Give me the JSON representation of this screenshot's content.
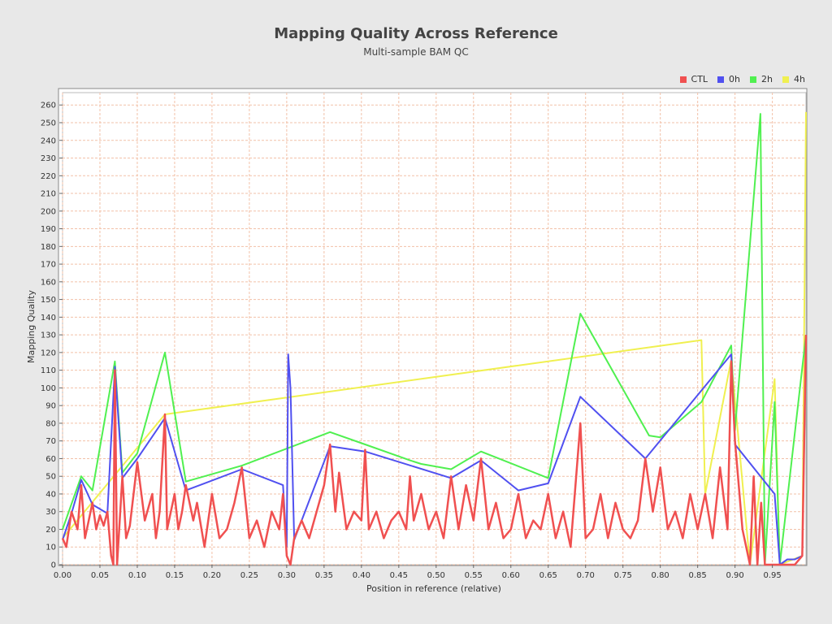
{
  "chart_data": {
    "type": "line",
    "title": "Mapping Quality Across Reference",
    "subtitle": "Multi-sample BAM QC",
    "xlabel": "Position in reference (relative)",
    "ylabel": "Mapping Quality",
    "xlim": [
      0,
      0.995
    ],
    "ylim": [
      0,
      267
    ],
    "x_ticks": [
      "0.00",
      "0.05",
      "0.10",
      "0.15",
      "0.20",
      "0.25",
      "0.30",
      "0.35",
      "0.40",
      "0.45",
      "0.50",
      "0.55",
      "0.60",
      "0.65",
      "0.70",
      "0.75",
      "0.80",
      "0.85",
      "0.90",
      "0.95"
    ],
    "y_ticks": [
      "0",
      "10",
      "20",
      "30",
      "40",
      "50",
      "60",
      "70",
      "80",
      "90",
      "100",
      "110",
      "120",
      "130",
      "140",
      "150",
      "160",
      "170",
      "180",
      "190",
      "200",
      "210",
      "220",
      "230",
      "240",
      "250",
      "260"
    ],
    "grid": true,
    "legend_position": "top-right",
    "series": [
      {
        "name": "CTL",
        "color": "#f05050",
        "points": [
          [
            0.0,
            15
          ],
          [
            0.005,
            10
          ],
          [
            0.012,
            30
          ],
          [
            0.02,
            20
          ],
          [
            0.025,
            45
          ],
          [
            0.03,
            15
          ],
          [
            0.035,
            25
          ],
          [
            0.04,
            35
          ],
          [
            0.045,
            20
          ],
          [
            0.05,
            28
          ],
          [
            0.055,
            22
          ],
          [
            0.06,
            30
          ],
          [
            0.065,
            5
          ],
          [
            0.068,
            0
          ],
          [
            0.07,
            110
          ],
          [
            0.073,
            0
          ],
          [
            0.08,
            50
          ],
          [
            0.085,
            15
          ],
          [
            0.09,
            22
          ],
          [
            0.1,
            58
          ],
          [
            0.11,
            25
          ],
          [
            0.12,
            40
          ],
          [
            0.125,
            15
          ],
          [
            0.13,
            30
          ],
          [
            0.137,
            85
          ],
          [
            0.14,
            20
          ],
          [
            0.15,
            40
          ],
          [
            0.155,
            20
          ],
          [
            0.16,
            30
          ],
          [
            0.165,
            45
          ],
          [
            0.175,
            25
          ],
          [
            0.18,
            35
          ],
          [
            0.19,
            10
          ],
          [
            0.2,
            40
          ],
          [
            0.21,
            15
          ],
          [
            0.22,
            20
          ],
          [
            0.23,
            35
          ],
          [
            0.24,
            55
          ],
          [
            0.25,
            15
          ],
          [
            0.26,
            25
          ],
          [
            0.27,
            10
          ],
          [
            0.28,
            30
          ],
          [
            0.29,
            20
          ],
          [
            0.295,
            40
          ],
          [
            0.3,
            5
          ],
          [
            0.305,
            0
          ],
          [
            0.31,
            15
          ],
          [
            0.32,
            25
          ],
          [
            0.33,
            15
          ],
          [
            0.34,
            30
          ],
          [
            0.35,
            45
          ],
          [
            0.358,
            68
          ],
          [
            0.365,
            30
          ],
          [
            0.37,
            52
          ],
          [
            0.38,
            20
          ],
          [
            0.39,
            30
          ],
          [
            0.4,
            25
          ],
          [
            0.405,
            65
          ],
          [
            0.41,
            20
          ],
          [
            0.42,
            30
          ],
          [
            0.43,
            15
          ],
          [
            0.44,
            25
          ],
          [
            0.45,
            30
          ],
          [
            0.46,
            20
          ],
          [
            0.465,
            50
          ],
          [
            0.47,
            25
          ],
          [
            0.48,
            40
          ],
          [
            0.49,
            20
          ],
          [
            0.5,
            30
          ],
          [
            0.51,
            15
          ],
          [
            0.52,
            50
          ],
          [
            0.53,
            20
          ],
          [
            0.54,
            45
          ],
          [
            0.55,
            25
          ],
          [
            0.56,
            60
          ],
          [
            0.57,
            20
          ],
          [
            0.58,
            35
          ],
          [
            0.59,
            15
          ],
          [
            0.6,
            20
          ],
          [
            0.61,
            40
          ],
          [
            0.62,
            15
          ],
          [
            0.63,
            25
          ],
          [
            0.64,
            20
          ],
          [
            0.65,
            40
          ],
          [
            0.66,
            15
          ],
          [
            0.67,
            30
          ],
          [
            0.68,
            10
          ],
          [
            0.693,
            80
          ],
          [
            0.7,
            15
          ],
          [
            0.71,
            20
          ],
          [
            0.72,
            40
          ],
          [
            0.73,
            15
          ],
          [
            0.74,
            35
          ],
          [
            0.75,
            20
          ],
          [
            0.76,
            15
          ],
          [
            0.77,
            25
          ],
          [
            0.78,
            60
          ],
          [
            0.79,
            30
          ],
          [
            0.8,
            55
          ],
          [
            0.81,
            20
          ],
          [
            0.82,
            30
          ],
          [
            0.83,
            15
          ],
          [
            0.84,
            40
          ],
          [
            0.85,
            20
          ],
          [
            0.86,
            40
          ],
          [
            0.87,
            15
          ],
          [
            0.88,
            55
          ],
          [
            0.89,
            20
          ],
          [
            0.895,
            115
          ],
          [
            0.9,
            70
          ],
          [
            0.91,
            20
          ],
          [
            0.92,
            0
          ],
          [
            0.925,
            50
          ],
          [
            0.93,
            0
          ],
          [
            0.935,
            35
          ],
          [
            0.94,
            0
          ],
          [
            0.95,
            0
          ],
          [
            0.96,
            0
          ],
          [
            0.97,
            0
          ],
          [
            0.98,
            0
          ],
          [
            0.99,
            5
          ],
          [
            0.995,
            130
          ]
        ]
      },
      {
        "name": "0h",
        "color": "#5050f0",
        "points": [
          [
            0.0,
            14
          ],
          [
            0.012,
            29
          ],
          [
            0.025,
            48
          ],
          [
            0.04,
            34
          ],
          [
            0.06,
            29
          ],
          [
            0.07,
            112
          ],
          [
            0.08,
            49
          ],
          [
            0.1,
            60
          ],
          [
            0.137,
            83
          ],
          [
            0.165,
            42
          ],
          [
            0.24,
            54
          ],
          [
            0.295,
            45
          ],
          [
            0.3,
            10
          ],
          [
            0.302,
            119
          ],
          [
            0.305,
            100
          ],
          [
            0.31,
            14
          ],
          [
            0.358,
            67
          ],
          [
            0.405,
            64
          ],
          [
            0.52,
            49
          ],
          [
            0.56,
            59
          ],
          [
            0.61,
            42
          ],
          [
            0.65,
            46
          ],
          [
            0.693,
            95
          ],
          [
            0.78,
            60
          ],
          [
            0.895,
            119
          ],
          [
            0.9,
            68
          ],
          [
            0.953,
            40
          ],
          [
            0.96,
            0
          ],
          [
            0.97,
            3
          ],
          [
            0.98,
            3
          ],
          [
            0.99,
            5
          ],
          [
            0.995,
            130
          ]
        ]
      },
      {
        "name": "2h",
        "color": "#50f050",
        "points": [
          [
            0.0,
            20
          ],
          [
            0.025,
            50
          ],
          [
            0.04,
            42
          ],
          [
            0.07,
            115
          ],
          [
            0.08,
            52
          ],
          [
            0.1,
            63
          ],
          [
            0.137,
            120
          ],
          [
            0.165,
            47
          ],
          [
            0.24,
            56
          ],
          [
            0.358,
            75
          ],
          [
            0.405,
            68
          ],
          [
            0.465,
            59
          ],
          [
            0.48,
            57
          ],
          [
            0.52,
            54
          ],
          [
            0.56,
            64
          ],
          [
            0.65,
            49
          ],
          [
            0.693,
            142
          ],
          [
            0.785,
            73
          ],
          [
            0.8,
            72
          ],
          [
            0.855,
            92
          ],
          [
            0.895,
            124
          ],
          [
            0.9,
            76
          ],
          [
            0.934,
            255
          ],
          [
            0.94,
            0
          ],
          [
            0.953,
            92
          ],
          [
            0.96,
            0
          ],
          [
            0.995,
            130
          ]
        ]
      },
      {
        "name": "4h",
        "color": "#f0f050",
        "points": [
          [
            0.0,
            15
          ],
          [
            0.137,
            85
          ],
          [
            0.855,
            127
          ],
          [
            0.86,
            40
          ],
          [
            0.895,
            116
          ],
          [
            0.92,
            0
          ],
          [
            0.953,
            105
          ],
          [
            0.96,
            0
          ],
          [
            0.99,
            5
          ],
          [
            0.995,
            256
          ]
        ]
      }
    ]
  }
}
